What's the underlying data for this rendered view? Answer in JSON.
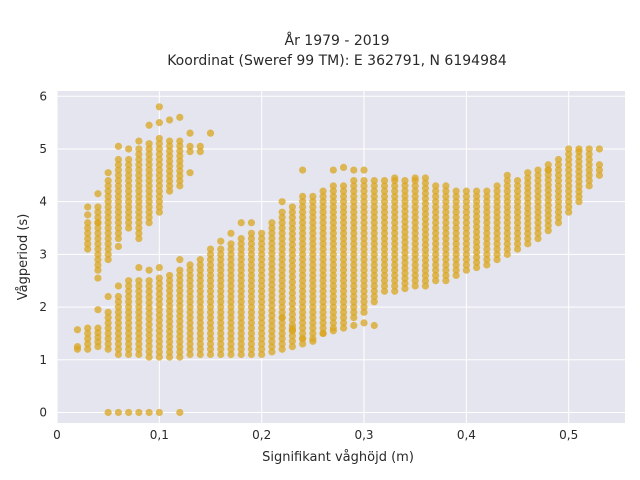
{
  "chart_data": {
    "type": "scatter",
    "title": "År 1979 - 2019",
    "subtitle": "Koordinat (Sweref 99 TM): E 362791, N 6194984",
    "xlabel": "Signifikant våghöjd (m)",
    "ylabel": "Vågperiod (s)",
    "xlim": [
      0,
      0.555
    ],
    "ylim": [
      -0.2,
      6.1
    ],
    "x_ticks": [
      0,
      0.1,
      0.2,
      0.3,
      0.4,
      0.5
    ],
    "x_tick_labels": [
      "0",
      "0,1",
      "0,2",
      "0,3",
      "0,4",
      "0,5"
    ],
    "y_ticks": [
      0,
      1,
      2,
      3,
      4,
      5,
      6
    ],
    "y_tick_labels": [
      "0",
      "1",
      "2",
      "3",
      "4",
      "5",
      "6"
    ],
    "grid": true,
    "marker_color": "#DAA520",
    "background_color": "#E5E5EF",
    "columns": [
      {
        "x": 0.02,
        "ranges": [
          [
            1.2,
            1.25
          ]
        ],
        "extra": [
          1.57
        ]
      },
      {
        "x": 0.03,
        "ranges": [
          [
            1.2,
            1.6
          ],
          [
            3.1,
            3.5
          ]
        ],
        "extra": [
          3.75,
          3.6,
          3.9
        ]
      },
      {
        "x": 0.04,
        "ranges": [
          [
            1.25,
            1.6
          ],
          [
            2.7,
            3.9
          ]
        ],
        "extra": [
          4.15,
          2.55,
          1.95,
          3.6
        ]
      },
      {
        "x": 0.05,
        "ranges": [
          [
            1.2,
            1.9
          ],
          [
            3.0,
            4.4
          ]
        ],
        "extra": [
          0,
          4.55,
          2.2,
          2.9
        ]
      },
      {
        "x": 0.06,
        "ranges": [
          [
            1.1,
            2.2
          ],
          [
            3.3,
            4.8
          ]
        ],
        "extra": [
          0,
          5.05,
          2.4,
          3.15
        ]
      },
      {
        "x": 0.07,
        "ranges": [
          [
            1.1,
            2.4
          ],
          [
            3.5,
            4.8
          ]
        ],
        "extra": [
          0,
          5.0,
          2.5
        ]
      },
      {
        "x": 0.08,
        "ranges": [
          [
            1.1,
            2.5
          ],
          [
            3.3,
            5.0
          ]
        ],
        "extra": [
          0,
          5.15,
          2.75
        ]
      },
      {
        "x": 0.09,
        "ranges": [
          [
            1.05,
            2.5
          ],
          [
            3.6,
            5.1
          ]
        ],
        "extra": [
          0,
          5.45,
          2.7
        ]
      },
      {
        "x": 0.1,
        "ranges": [
          [
            1.05,
            2.55
          ],
          [
            3.8,
            5.2
          ]
        ],
        "extra": [
          0,
          5.8,
          5.5,
          2.75
        ]
      },
      {
        "x": 0.11,
        "ranges": [
          [
            1.05,
            2.6
          ],
          [
            4.2,
            5.15
          ]
        ],
        "extra": [
          5.55
        ]
      },
      {
        "x": 0.12,
        "ranges": [
          [
            1.05,
            2.7
          ],
          [
            4.3,
            5.15
          ]
        ],
        "extra": [
          0,
          5.6,
          2.9
        ]
      },
      {
        "x": 0.13,
        "ranges": [
          [
            1.1,
            2.8
          ],
          [
            4.95,
            5.05
          ]
        ],
        "extra": [
          5.3,
          4.55
        ]
      },
      {
        "x": 0.14,
        "ranges": [
          [
            1.1,
            2.9
          ],
          [
            4.95,
            5.05
          ]
        ],
        "extra": []
      },
      {
        "x": 0.15,
        "ranges": [
          [
            1.1,
            3.0
          ]
        ],
        "extra": [
          5.3,
          3.1
        ]
      },
      {
        "x": 0.16,
        "ranges": [
          [
            1.1,
            3.1
          ]
        ],
        "extra": [
          3.25
        ]
      },
      {
        "x": 0.17,
        "ranges": [
          [
            1.1,
            3.2
          ]
        ],
        "extra": [
          3.4
        ]
      },
      {
        "x": 0.18,
        "ranges": [
          [
            1.1,
            3.3
          ]
        ],
        "extra": [
          3.6
        ]
      },
      {
        "x": 0.19,
        "ranges": [
          [
            1.1,
            3.4
          ]
        ],
        "extra": [
          3.6
        ]
      },
      {
        "x": 0.2,
        "ranges": [
          [
            1.1,
            3.4
          ]
        ],
        "extra": []
      },
      {
        "x": 0.21,
        "ranges": [
          [
            1.15,
            3.6
          ]
        ],
        "extra": []
      },
      {
        "x": 0.22,
        "ranges": [
          [
            1.2,
            3.8
          ]
        ],
        "extra": [
          4.0,
          1.8
        ]
      },
      {
        "x": 0.23,
        "ranges": [
          [
            1.25,
            3.9
          ]
        ],
        "extra": [
          1.6,
          1.55
        ]
      },
      {
        "x": 0.24,
        "ranges": [
          [
            1.3,
            4.1
          ]
        ],
        "extra": [
          4.6,
          1.4
        ]
      },
      {
        "x": 0.25,
        "ranges": [
          [
            1.4,
            4.1
          ]
        ],
        "extra": [
          1.35
        ]
      },
      {
        "x": 0.26,
        "ranges": [
          [
            1.5,
            4.2
          ]
        ],
        "extra": [
          1.5
        ]
      },
      {
        "x": 0.27,
        "ranges": [
          [
            1.6,
            4.3
          ]
        ],
        "extra": [
          4.6,
          1.55
        ]
      },
      {
        "x": 0.28,
        "ranges": [
          [
            1.7,
            4.3
          ]
        ],
        "extra": [
          4.65,
          1.6
        ]
      },
      {
        "x": 0.29,
        "ranges": [
          [
            1.8,
            4.4
          ]
        ],
        "extra": [
          4.6,
          1.65
        ]
      },
      {
        "x": 0.3,
        "ranges": [
          [
            1.9,
            4.4
          ]
        ],
        "extra": [
          4.6,
          1.7
        ]
      },
      {
        "x": 0.31,
        "ranges": [
          [
            2.1,
            4.4
          ]
        ],
        "extra": [
          1.65
        ]
      },
      {
        "x": 0.32,
        "ranges": [
          [
            2.3,
            4.4
          ]
        ],
        "extra": []
      },
      {
        "x": 0.33,
        "ranges": [
          [
            2.3,
            4.4
          ]
        ],
        "extra": [
          4.45
        ]
      },
      {
        "x": 0.34,
        "ranges": [
          [
            2.35,
            4.4
          ]
        ],
        "extra": []
      },
      {
        "x": 0.35,
        "ranges": [
          [
            2.4,
            4.4
          ]
        ],
        "extra": [
          4.45
        ]
      },
      {
        "x": 0.36,
        "ranges": [
          [
            2.4,
            4.45
          ]
        ],
        "extra": []
      },
      {
        "x": 0.37,
        "ranges": [
          [
            2.5,
            4.3
          ]
        ],
        "extra": []
      },
      {
        "x": 0.38,
        "ranges": [
          [
            2.5,
            4.3
          ]
        ],
        "extra": []
      },
      {
        "x": 0.39,
        "ranges": [
          [
            2.6,
            4.2
          ]
        ],
        "extra": []
      },
      {
        "x": 0.4,
        "ranges": [
          [
            2.7,
            4.2
          ]
        ],
        "extra": []
      },
      {
        "x": 0.41,
        "ranges": [
          [
            2.75,
            4.2
          ]
        ],
        "extra": []
      },
      {
        "x": 0.42,
        "ranges": [
          [
            2.8,
            4.2
          ]
        ],
        "extra": []
      },
      {
        "x": 0.43,
        "ranges": [
          [
            2.9,
            4.3
          ]
        ],
        "extra": []
      },
      {
        "x": 0.44,
        "ranges": [
          [
            3.0,
            4.4
          ]
        ],
        "extra": [
          4.5
        ]
      },
      {
        "x": 0.45,
        "ranges": [
          [
            3.1,
            4.4
          ]
        ],
        "extra": []
      },
      {
        "x": 0.46,
        "ranges": [
          [
            3.2,
            4.45
          ]
        ],
        "extra": [
          4.55
        ]
      },
      {
        "x": 0.47,
        "ranges": [
          [
            3.3,
            4.6
          ]
        ],
        "extra": []
      },
      {
        "x": 0.48,
        "ranges": [
          [
            3.45,
            4.7
          ]
        ],
        "extra": [
          4.6
        ]
      },
      {
        "x": 0.49,
        "ranges": [
          [
            3.6,
            4.8
          ]
        ],
        "extra": []
      },
      {
        "x": 0.5,
        "ranges": [
          [
            3.8,
            5.0
          ]
        ],
        "extra": []
      },
      {
        "x": 0.51,
        "ranges": [
          [
            4.0,
            4.95
          ]
        ],
        "extra": [
          5.0
        ]
      },
      {
        "x": 0.52,
        "ranges": [
          [
            4.3,
            5.0
          ]
        ],
        "extra": []
      },
      {
        "x": 0.53,
        "ranges": [
          [
            4.5,
            4.7
          ]
        ],
        "extra": [
          5.0
        ]
      }
    ]
  }
}
